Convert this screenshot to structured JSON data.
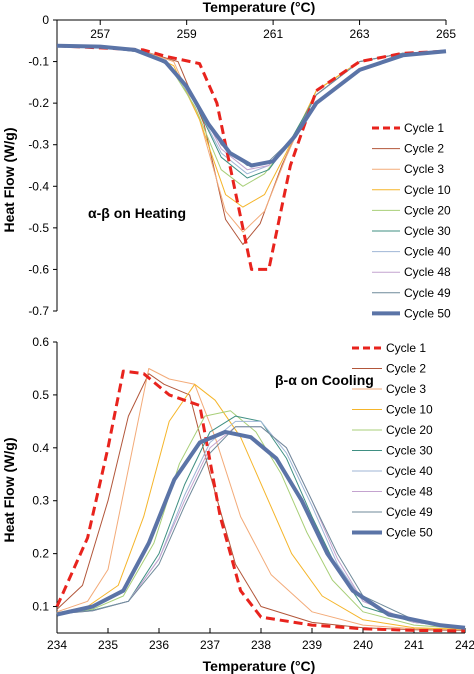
{
  "chart_data": [
    {
      "type": "line",
      "title": "",
      "xlabel": "Temperature (°C)",
      "ylabel": "Heat Flow (W/g)",
      "xlim": [
        256,
        265
      ],
      "ylim": [
        -0.7,
        0
      ],
      "x_ticks": [
        "257",
        "259",
        "261",
        "263",
        "265"
      ],
      "x_tick_values": [
        257,
        259,
        261,
        263,
        265
      ],
      "y_ticks": [
        "0",
        "-0.1",
        "-0.2",
        "-0.3",
        "-0.4",
        "-0.5",
        "-0.6",
        "-0.7"
      ],
      "y_tick_values": [
        0,
        -0.1,
        -0.2,
        -0.3,
        -0.4,
        -0.5,
        -0.6,
        -0.7
      ],
      "x_axis_position": "top",
      "annotation": "α-β on Heating",
      "legend_position": "right",
      "series": [
        {
          "name": "Cycle 1",
          "color": "#e8231d",
          "style": "dashed",
          "x": [
            256,
            257,
            258.0,
            258.5,
            259.3,
            259.7,
            260.1,
            260.5,
            260.9,
            261.4,
            262.0,
            263.0,
            264.0,
            265
          ],
          "y": [
            -0.062,
            -0.067,
            -0.072,
            -0.087,
            -0.105,
            -0.2,
            -0.4,
            -0.6,
            -0.6,
            -0.35,
            -0.17,
            -0.1,
            -0.08,
            -0.075
          ]
        },
        {
          "name": "Cycle 2",
          "color": "#b2563a",
          "x": [
            256,
            257,
            258,
            258.8,
            259.4,
            259.9,
            260.3,
            260.7,
            261.2,
            262.0,
            263.0,
            264.0,
            265
          ],
          "y": [
            -0.062,
            -0.066,
            -0.075,
            -0.1,
            -0.25,
            -0.48,
            -0.54,
            -0.49,
            -0.35,
            -0.17,
            -0.1,
            -0.08,
            -0.075
          ]
        },
        {
          "name": "Cycle 3",
          "color": "#f3ab79",
          "x": [
            256,
            257,
            258,
            258.7,
            259.3,
            259.9,
            260.3,
            260.8,
            261.3,
            262.0,
            263.0,
            264.0,
            265
          ],
          "y": [
            -0.062,
            -0.066,
            -0.075,
            -0.1,
            -0.24,
            -0.46,
            -0.51,
            -0.46,
            -0.33,
            -0.17,
            -0.1,
            -0.08,
            -0.075
          ]
        },
        {
          "name": "Cycle 10",
          "color": "#f5b52a",
          "x": [
            256,
            257,
            258,
            258.7,
            259.3,
            259.9,
            260.3,
            260.8,
            261.3,
            262.0,
            263.0,
            264.0,
            265
          ],
          "y": [
            -0.062,
            -0.066,
            -0.076,
            -0.11,
            -0.24,
            -0.42,
            -0.45,
            -0.42,
            -0.32,
            -0.17,
            -0.1,
            -0.08,
            -0.075
          ]
        },
        {
          "name": "Cycle 20",
          "color": "#a8cf78",
          "x": [
            256,
            257,
            258,
            258.6,
            259.2,
            259.8,
            260.3,
            260.8,
            261.4,
            262.0,
            263.0,
            264.0,
            265
          ],
          "y": [
            -0.062,
            -0.066,
            -0.077,
            -0.11,
            -0.21,
            -0.36,
            -0.4,
            -0.37,
            -0.29,
            -0.18,
            -0.1,
            -0.08,
            -0.075
          ]
        },
        {
          "name": "Cycle 30",
          "color": "#3f8f82",
          "x": [
            256,
            257,
            258,
            258.6,
            259.2,
            259.8,
            260.4,
            260.9,
            261.4,
            262.0,
            263.0,
            264.0,
            265
          ],
          "y": [
            -0.062,
            -0.066,
            -0.078,
            -0.11,
            -0.2,
            -0.33,
            -0.38,
            -0.36,
            -0.29,
            -0.18,
            -0.1,
            -0.08,
            -0.075
          ]
        },
        {
          "name": "Cycle 40",
          "color": "#9fb6d6",
          "x": [
            256,
            257,
            258,
            258.6,
            259.2,
            259.8,
            260.4,
            260.9,
            261.5,
            262.0,
            263.0,
            264.0,
            265
          ],
          "y": [
            -0.062,
            -0.066,
            -0.078,
            -0.11,
            -0.2,
            -0.32,
            -0.37,
            -0.35,
            -0.28,
            -0.18,
            -0.1,
            -0.08,
            -0.075
          ]
        },
        {
          "name": "Cycle 48",
          "color": "#c4a3cf",
          "x": [
            256,
            257,
            258,
            258.6,
            259.2,
            259.8,
            260.4,
            260.9,
            261.5,
            262.0,
            263.0,
            264.0,
            265
          ],
          "y": [
            -0.062,
            -0.066,
            -0.078,
            -0.11,
            -0.19,
            -0.31,
            -0.36,
            -0.35,
            -0.28,
            -0.18,
            -0.1,
            -0.08,
            -0.075
          ]
        },
        {
          "name": "Cycle 49",
          "color": "#6f8a9a",
          "x": [
            256,
            257,
            258,
            258.6,
            259.2,
            259.8,
            260.4,
            260.9,
            261.5,
            262.0,
            263.0,
            264.0,
            265
          ],
          "y": [
            -0.062,
            -0.066,
            -0.078,
            -0.11,
            -0.19,
            -0.3,
            -0.35,
            -0.34,
            -0.28,
            -0.18,
            -0.1,
            -0.08,
            -0.075
          ]
        },
        {
          "name": "Cycle 50",
          "color": "#5b74a7",
          "style": "thick",
          "x": [
            256,
            257,
            257.8,
            258.5,
            259.0,
            259.5,
            260.0,
            260.5,
            261.0,
            261.5,
            262.0,
            263.0,
            264.0,
            265
          ],
          "y": [
            -0.062,
            -0.064,
            -0.072,
            -0.1,
            -0.16,
            -0.25,
            -0.32,
            -0.35,
            -0.34,
            -0.28,
            -0.2,
            -0.12,
            -0.085,
            -0.075
          ]
        }
      ]
    },
    {
      "type": "line",
      "title": "",
      "xlabel": "Temperature (°C)",
      "ylabel": "Heat Flow (W/g)",
      "xlim": [
        234,
        242
      ],
      "ylim": [
        0.05,
        0.6
      ],
      "x_ticks": [
        "234",
        "235",
        "236",
        "237",
        "238",
        "239",
        "240",
        "241",
        "242"
      ],
      "x_tick_values": [
        234,
        235,
        236,
        237,
        238,
        239,
        240,
        241,
        242
      ],
      "y_ticks": [
        "0.6",
        "0.5",
        "0.4",
        "0.3",
        "0.2",
        "0.1"
      ],
      "y_tick_values": [
        0.6,
        0.5,
        0.4,
        0.3,
        0.2,
        0.1
      ],
      "x_axis_position": "bottom",
      "annotation": "β-α on Cooling",
      "legend_position": "right",
      "series": [
        {
          "name": "Cycle 1",
          "color": "#e8231d",
          "style": "dashed",
          "x": [
            234.0,
            234.6,
            235.0,
            235.3,
            235.7,
            236.2,
            236.8,
            237.2,
            237.6,
            238.0,
            239.0,
            240.0,
            241.0,
            242.0
          ],
          "y": [
            0.1,
            0.23,
            0.4,
            0.545,
            0.54,
            0.5,
            0.48,
            0.27,
            0.13,
            0.08,
            0.065,
            0.058,
            0.055,
            0.054
          ]
        },
        {
          "name": "Cycle 2",
          "color": "#b2563a",
          "x": [
            234.0,
            234.5,
            235.0,
            235.4,
            235.8,
            236.1,
            236.6,
            237.0,
            237.5,
            238.0,
            239.0,
            240.0,
            241.0,
            242.0
          ],
          "y": [
            0.095,
            0.14,
            0.3,
            0.46,
            0.54,
            0.52,
            0.5,
            0.35,
            0.18,
            0.1,
            0.07,
            0.06,
            0.056,
            0.055
          ]
        },
        {
          "name": "Cycle 3",
          "color": "#f3ab79",
          "x": [
            234.0,
            234.6,
            235.0,
            235.4,
            235.8,
            236.2,
            236.7,
            237.1,
            237.6,
            238.2,
            239.0,
            240.0,
            241.0,
            242.0
          ],
          "y": [
            0.09,
            0.11,
            0.17,
            0.36,
            0.55,
            0.53,
            0.52,
            0.42,
            0.27,
            0.16,
            0.09,
            0.065,
            0.058,
            0.056
          ]
        },
        {
          "name": "Cycle 10",
          "color": "#f5b52a",
          "x": [
            234.0,
            234.6,
            235.2,
            235.7,
            236.2,
            236.7,
            237.1,
            237.6,
            238.1,
            238.6,
            239.2,
            240.0,
            241.0,
            242.0
          ],
          "y": [
            0.088,
            0.1,
            0.14,
            0.27,
            0.45,
            0.52,
            0.49,
            0.42,
            0.31,
            0.2,
            0.12,
            0.075,
            0.06,
            0.057
          ]
        },
        {
          "name": "Cycle 20",
          "color": "#a8cf78",
          "x": [
            234.0,
            234.7,
            235.3,
            235.9,
            236.4,
            236.9,
            237.4,
            237.9,
            238.4,
            238.9,
            239.4,
            240.0,
            241.0,
            242.0
          ],
          "y": [
            0.087,
            0.095,
            0.12,
            0.22,
            0.37,
            0.46,
            0.47,
            0.43,
            0.35,
            0.24,
            0.15,
            0.09,
            0.065,
            0.058
          ]
        },
        {
          "name": "Cycle 30",
          "color": "#3f8f82",
          "x": [
            234.0,
            234.7,
            235.4,
            236.0,
            236.5,
            237.0,
            237.5,
            238.0,
            238.5,
            239.0,
            239.5,
            240.0,
            241.0,
            242.0
          ],
          "y": [
            0.086,
            0.093,
            0.11,
            0.2,
            0.33,
            0.43,
            0.46,
            0.45,
            0.38,
            0.27,
            0.17,
            0.1,
            0.07,
            0.06
          ]
        },
        {
          "name": "Cycle 40",
          "color": "#9fb6d6",
          "x": [
            234.0,
            234.7,
            235.4,
            236.0,
            236.5,
            237.0,
            237.5,
            238.0,
            238.5,
            239.0,
            239.5,
            240.0,
            241.0,
            242.0
          ],
          "y": [
            0.086,
            0.092,
            0.11,
            0.19,
            0.31,
            0.41,
            0.45,
            0.45,
            0.39,
            0.29,
            0.18,
            0.11,
            0.07,
            0.06
          ]
        },
        {
          "name": "Cycle 48",
          "color": "#c4a3cf",
          "x": [
            234.0,
            234.7,
            235.4,
            236.0,
            236.5,
            237.0,
            237.5,
            238.0,
            238.5,
            239.0,
            239.5,
            240.0,
            241.0,
            242.0
          ],
          "y": [
            0.086,
            0.092,
            0.11,
            0.19,
            0.3,
            0.4,
            0.44,
            0.44,
            0.4,
            0.3,
            0.19,
            0.11,
            0.07,
            0.06
          ]
        },
        {
          "name": "Cycle 49",
          "color": "#6f8a9a",
          "x": [
            234.0,
            234.7,
            235.4,
            236.0,
            236.5,
            237.0,
            237.5,
            238.0,
            238.5,
            239.0,
            239.5,
            240.0,
            241.0,
            242.0
          ],
          "y": [
            0.086,
            0.092,
            0.11,
            0.18,
            0.29,
            0.39,
            0.44,
            0.44,
            0.4,
            0.3,
            0.2,
            0.12,
            0.075,
            0.06
          ]
        },
        {
          "name": "Cycle 50",
          "color": "#5b74a7",
          "style": "thick",
          "x": [
            234.0,
            234.7,
            235.3,
            235.8,
            236.3,
            236.8,
            237.3,
            237.8,
            238.3,
            238.8,
            239.3,
            239.8,
            240.5,
            241.5,
            242.0
          ],
          "y": [
            0.085,
            0.1,
            0.13,
            0.22,
            0.34,
            0.41,
            0.43,
            0.42,
            0.38,
            0.3,
            0.2,
            0.13,
            0.085,
            0.065,
            0.06
          ]
        }
      ]
    }
  ]
}
